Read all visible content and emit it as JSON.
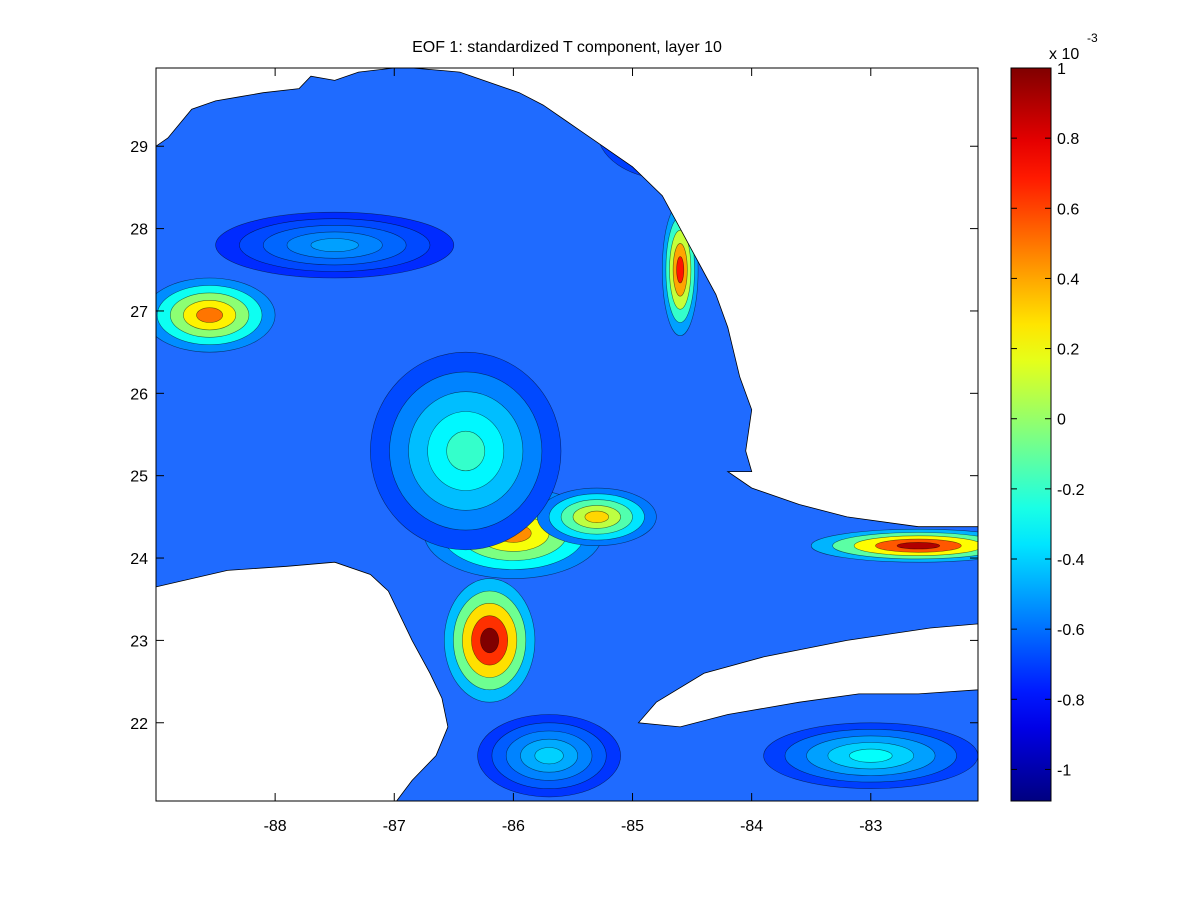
{
  "chart_data": {
    "type": "heatmap",
    "title": "EOF 1: standardized T component, layer 10",
    "x_ticks": [
      -88,
      -87,
      -86,
      -85,
      -84,
      -83
    ],
    "x_tick_labels": [
      "-88",
      "-87",
      "-86",
      "-85",
      "-84",
      "-83"
    ],
    "xlim": [
      -89,
      -82.1
    ],
    "y_ticks": [
      22,
      23,
      24,
      25,
      26,
      27,
      28,
      29
    ],
    "y_tick_labels": [
      "22",
      "23",
      "24",
      "25",
      "26",
      "27",
      "28",
      "29"
    ],
    "ylim": [
      21.05,
      29.95
    ],
    "colorbar": {
      "exponent_label": "x 10",
      "exponent": "-3",
      "ticks": [
        -1,
        -0.8,
        -0.6,
        -0.4,
        -0.2,
        0,
        0.2,
        0.4,
        0.6,
        0.8,
        1
      ],
      "tick_labels": [
        "-1",
        "-0.8",
        "-0.6",
        "-0.4",
        "-0.2",
        "0",
        "0.2",
        "0.4",
        "0.6",
        "0.8",
        "1"
      ],
      "range": [
        -1.09,
        1.0
      ],
      "colormap": "jet"
    },
    "land_color": "#ffffff",
    "features": [
      {
        "lon": -88.55,
        "lat": 26.95,
        "value": 0.5,
        "sx": 0.55,
        "sy": 0.45
      },
      {
        "lon": -86.2,
        "lat": 23.0,
        "value": 1.0,
        "sx": 0.38,
        "sy": 0.75
      },
      {
        "lon": -86.0,
        "lat": 24.3,
        "value": 0.45,
        "sx": 0.75,
        "sy": 0.55
      },
      {
        "lon": -85.3,
        "lat": 24.5,
        "value": 0.3,
        "sx": 0.5,
        "sy": 0.35
      },
      {
        "lon": -86.4,
        "lat": 25.3,
        "value": -0.2,
        "sx": 0.8,
        "sy": 1.2
      },
      {
        "lon": -87.5,
        "lat": 27.8,
        "value": -0.5,
        "sx": 1.0,
        "sy": 0.4
      },
      {
        "lon": -84.7,
        "lat": 29.2,
        "value": -0.3,
        "sx": 0.6,
        "sy": 0.6
      },
      {
        "lon": -82.6,
        "lat": 24.15,
        "value": 0.9,
        "sx": 0.9,
        "sy": 0.2
      },
      {
        "lon": -84.6,
        "lat": 27.5,
        "value": 0.7,
        "sx": 0.15,
        "sy": 0.8
      },
      {
        "lon": -83.0,
        "lat": 21.6,
        "value": -0.3,
        "sx": 0.9,
        "sy": 0.4
      },
      {
        "lon": -85.7,
        "lat": 21.6,
        "value": -0.4,
        "sx": 0.6,
        "sy": 0.5
      }
    ]
  }
}
